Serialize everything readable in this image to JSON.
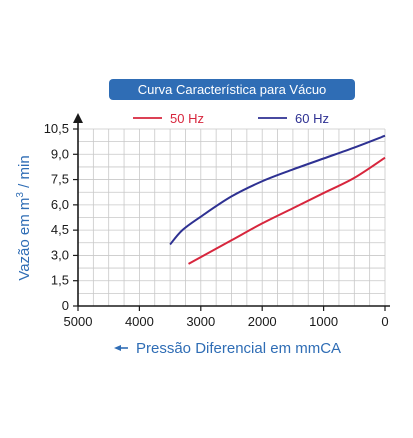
{
  "chart_data": {
    "type": "line",
    "title": "Curva Característica para Vácuo",
    "xlabel": "Pressão Diferencial em mmCA",
    "ylabel_prefix": "Vazão em m",
    "ylabel_sup": "3",
    "ylabel_suffix": " / min",
    "x_ticks": [
      "5000",
      "4000",
      "3000",
      "2000",
      "1000",
      "0"
    ],
    "y_ticks": [
      "0",
      "1,5",
      "3,0",
      "4,5",
      "6,0",
      "7,5",
      "9,0",
      "10,5"
    ],
    "xlim": [
      5000,
      0
    ],
    "ylim": [
      0,
      10.5
    ],
    "x_reversed": true,
    "grid": true,
    "legend_position": "top-center",
    "series": [
      {
        "name": "50 Hz",
        "color": "#d7263d",
        "x": [
          3200,
          3000,
          2500,
          2000,
          1500,
          1000,
          500,
          0
        ],
        "y": [
          2.5,
          2.9,
          3.9,
          4.9,
          5.8,
          6.7,
          7.6,
          8.8
        ]
      },
      {
        "name": "60 Hz",
        "color": "#2e3192",
        "x": [
          3500,
          3300,
          3000,
          2500,
          2000,
          1500,
          1000,
          500,
          0
        ],
        "y": [
          3.65,
          4.5,
          5.3,
          6.5,
          7.4,
          8.1,
          8.75,
          9.4,
          10.1
        ]
      }
    ]
  },
  "colors": {
    "accent": "#2f6db5",
    "axis": "#1a1a1a",
    "grid": "#c8c8c8"
  }
}
